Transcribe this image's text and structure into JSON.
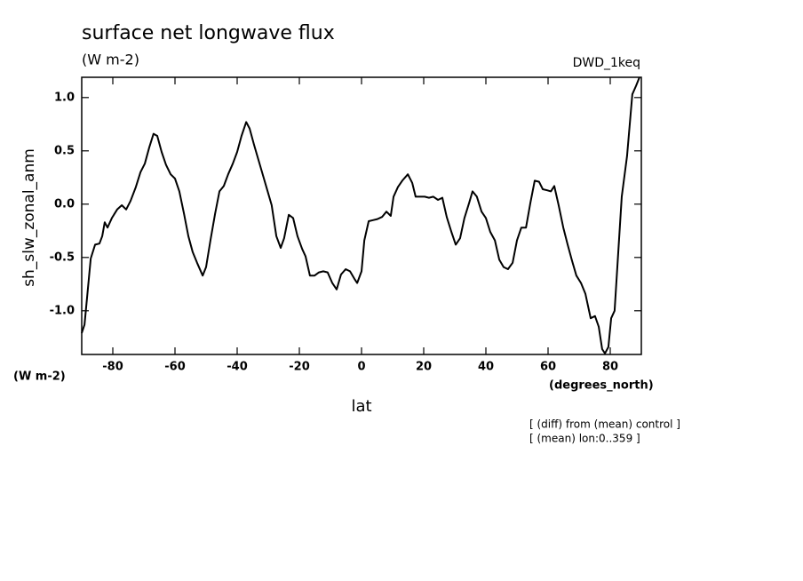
{
  "chart_data": {
    "type": "line",
    "title": "surface net longwave flux",
    "subtitle": "(W m-2)",
    "run_label": "DWD_1keq",
    "y_label": "sh_slw_zonal_anm",
    "y_units": "(W m-2)",
    "x_label": "lat",
    "x_units": "(degrees_north)",
    "notes": [
      "[ (diff) from (mean) control ]",
      "[ (mean) lon:0..359 ]"
    ],
    "color": "#000000",
    "xlim": [
      -90,
      90
    ],
    "ylim": [
      -1.41,
      1.19
    ],
    "xticks": [
      -80,
      -60,
      -40,
      -20,
      0,
      20,
      40,
      60,
      80
    ],
    "yticks": [
      {
        "value": 1,
        "label": "1.0"
      },
      0.5,
      {
        "value": 0,
        "label": "0.0"
      },
      -0.5,
      {
        "value": -1,
        "label": "-1.0"
      }
    ],
    "x": [
      -90,
      -89.1,
      -87.1,
      -85.7,
      -84.3,
      -83.4,
      -82.6,
      -81.7,
      -80.3,
      -78.6,
      -77.1,
      -75.7,
      -74.3,
      -72.6,
      -71.1,
      -69.7,
      -68.3,
      -66.9,
      -65.7,
      -64.3,
      -62.9,
      -61.4,
      -60,
      -58.6,
      -57.1,
      -55.7,
      -54.3,
      -52.9,
      -51.1,
      -50,
      -48.6,
      -47.1,
      -45.7,
      -44.3,
      -42.9,
      -41.4,
      -40,
      -38.6,
      -37.1,
      -36,
      -34.6,
      -33.1,
      -31.7,
      -30.3,
      -28.9,
      -27.4,
      -26,
      -24.9,
      -23.4,
      -22,
      -20.6,
      -19.1,
      -18,
      -16.6,
      -15.1,
      -13.7,
      -12.3,
      -10.9,
      -9.4,
      -8,
      -6.6,
      -5.1,
      -3.7,
      -2.3,
      -1.4,
      0,
      0.9,
      2.3,
      3.7,
      5.1,
      6.6,
      8,
      9.4,
      10.3,
      11.7,
      13.1,
      14.9,
      16.3,
      17.4,
      18.9,
      20.3,
      21.7,
      23.1,
      24.6,
      26,
      27.4,
      28.9,
      30.3,
      31.7,
      33.1,
      34.6,
      35.7,
      37.1,
      38.6,
      40,
      41.4,
      42.9,
      44.3,
      45.7,
      47.1,
      48.6,
      50,
      51.4,
      52.9,
      54.3,
      55.7,
      57.1,
      58.3,
      59.7,
      60.9,
      62,
      63.4,
      64.9,
      66.3,
      67.7,
      69.1,
      70.6,
      72,
      73.7,
      75.1,
      76.3,
      77.4,
      78.3,
      79.4,
      80.3,
      81.4,
      83.7,
      85.4,
      87.1,
      88.3,
      89.4
    ],
    "values": [
      -1.21,
      -1.13,
      -0.51,
      -0.38,
      -0.37,
      -0.3,
      -0.17,
      -0.22,
      -0.13,
      -0.05,
      -0.01,
      -0.05,
      0.03,
      0.16,
      0.3,
      0.38,
      0.53,
      0.66,
      0.64,
      0.49,
      0.37,
      0.28,
      0.24,
      0.12,
      -0.09,
      -0.3,
      -0.45,
      -0.55,
      -0.67,
      -0.59,
      -0.34,
      -0.09,
      0.12,
      0.17,
      0.28,
      0.38,
      0.49,
      0.64,
      0.77,
      0.71,
      0.56,
      0.41,
      0.27,
      0.13,
      -0.01,
      -0.3,
      -0.41,
      -0.32,
      -0.1,
      -0.13,
      -0.3,
      -0.42,
      -0.49,
      -0.67,
      -0.67,
      -0.64,
      -0.63,
      -0.64,
      -0.74,
      -0.8,
      -0.66,
      -0.61,
      -0.63,
      -0.7,
      -0.74,
      -0.63,
      -0.34,
      -0.16,
      -0.15,
      -0.14,
      -0.12,
      -0.07,
      -0.11,
      0.07,
      0.16,
      0.22,
      0.28,
      0.2,
      0.07,
      0.07,
      0.07,
      0.06,
      0.07,
      0.04,
      0.06,
      -0.12,
      -0.26,
      -0.38,
      -0.32,
      -0.13,
      0.01,
      0.12,
      0.07,
      -0.07,
      -0.13,
      -0.26,
      -0.34,
      -0.52,
      -0.59,
      -0.61,
      -0.55,
      -0.34,
      -0.22,
      -0.22,
      0.01,
      0.22,
      0.21,
      0.14,
      0.13,
      0.12,
      0.17,
      -0.01,
      -0.22,
      -0.38,
      -0.53,
      -0.67,
      -0.74,
      -0.84,
      -1.07,
      -1.05,
      -1.15,
      -1.36,
      -1.4,
      -1.34,
      -1.07,
      -1,
      0.07,
      0.45,
      1.03,
      1.11,
      1.19
    ]
  }
}
